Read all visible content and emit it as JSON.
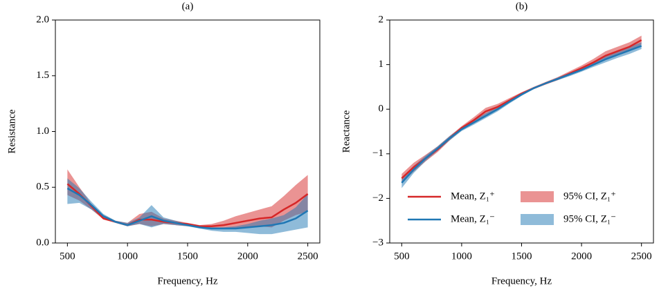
{
  "chart_data": [
    {
      "type": "line",
      "title": "(a)",
      "x_label": "Frequency, Hz",
      "y_label": "Resistance",
      "x": [
        500,
        600,
        700,
        800,
        900,
        1000,
        1100,
        1200,
        1300,
        1400,
        1500,
        1600,
        1700,
        1800,
        1900,
        2000,
        2100,
        2200,
        2300,
        2400,
        2500
      ],
      "xlim": [
        400,
        2600
      ],
      "xticks": [
        500,
        1000,
        1500,
        2000,
        2500
      ],
      "ylim": [
        0,
        2
      ],
      "yticks": [
        {
          "value": 0,
          "label": "0.0"
        },
        {
          "value": 0.5,
          "label": "0.5"
        },
        {
          "value": 1,
          "label": "1.0"
        },
        {
          "value": 1.5,
          "label": "1.5"
        },
        {
          "value": 2,
          "label": "2.0"
        }
      ],
      "series": [
        {
          "color": "#d62728",
          "values": [
            0.53,
            0.44,
            0.33,
            0.22,
            0.19,
            0.16,
            0.21,
            0.21,
            0.19,
            0.18,
            0.17,
            0.15,
            0.15,
            0.16,
            0.18,
            0.2,
            0.22,
            0.23,
            0.3,
            0.36,
            0.44
          ],
          "ci": {
            "color": "#d62728",
            "lower": [
              0.43,
              0.38,
              0.3,
              0.21,
              0.18,
              0.15,
              0.17,
              0.15,
              0.17,
              0.16,
              0.15,
              0.14,
              0.13,
              0.13,
              0.13,
              0.14,
              0.15,
              0.14,
              0.2,
              0.25,
              0.28
            ],
            "upper": [
              0.66,
              0.5,
              0.35,
              0.25,
              0.2,
              0.18,
              0.26,
              0.28,
              0.22,
              0.2,
              0.18,
              0.16,
              0.17,
              0.2,
              0.24,
              0.27,
              0.3,
              0.33,
              0.42,
              0.52,
              0.61
            ]
          }
        },
        {
          "color": "#1f77b4",
          "values": [
            0.49,
            0.43,
            0.34,
            0.24,
            0.19,
            0.16,
            0.2,
            0.24,
            0.2,
            0.18,
            0.16,
            0.14,
            0.13,
            0.13,
            0.13,
            0.14,
            0.15,
            0.16,
            0.18,
            0.22,
            0.29
          ],
          "ci": {
            "color": "#1f77b4",
            "lower": [
              0.35,
              0.36,
              0.3,
              0.22,
              0.18,
              0.15,
              0.17,
              0.14,
              0.17,
              0.16,
              0.15,
              0.13,
              0.11,
              0.1,
              0.1,
              0.09,
              0.08,
              0.08,
              0.1,
              0.12,
              0.14
            ],
            "upper": [
              0.58,
              0.49,
              0.37,
              0.26,
              0.2,
              0.18,
              0.23,
              0.34,
              0.23,
              0.2,
              0.17,
              0.15,
              0.14,
              0.14,
              0.15,
              0.17,
              0.2,
              0.22,
              0.25,
              0.32,
              0.44
            ]
          }
        }
      ]
    },
    {
      "type": "line",
      "title": "(b)",
      "x_label": "Frequency, Hz",
      "y_label": "Reactance",
      "x": [
        500,
        600,
        700,
        800,
        900,
        1000,
        1100,
        1200,
        1300,
        1400,
        1500,
        1600,
        1700,
        1800,
        1900,
        2000,
        2100,
        2200,
        2300,
        2400,
        2500
      ],
      "xlim": [
        400,
        2600
      ],
      "xticks": [
        500,
        1000,
        1500,
        2000,
        2500
      ],
      "ylim": [
        -3,
        2
      ],
      "yticks": [
        {
          "value": -3,
          "label": "−3"
        },
        {
          "value": -2,
          "label": "−2"
        },
        {
          "value": -1,
          "label": "−1"
        },
        0,
        1,
        2
      ],
      "legend": "lower right",
      "series": [
        {
          "name": "Mean, Z₁⁺",
          "color": "#d62728",
          "values": [
            -1.55,
            -1.3,
            -1.1,
            -0.9,
            -0.65,
            -0.42,
            -0.25,
            -0.05,
            0.05,
            0.2,
            0.35,
            0.47,
            0.58,
            0.68,
            0.8,
            0.92,
            1.05,
            1.2,
            1.3,
            1.4,
            1.55
          ],
          "ci": {
            "name": "95% CI, Z₁⁺",
            "color": "#d62728",
            "lower": [
              -1.65,
              -1.4,
              -1.17,
              -0.96,
              -0.7,
              -0.47,
              -0.3,
              -0.12,
              0.0,
              0.15,
              0.32,
              0.45,
              0.55,
              0.65,
              0.76,
              0.87,
              0.98,
              1.1,
              1.2,
              1.3,
              1.45
            ],
            "upper": [
              -1.45,
              -1.2,
              -1.02,
              -0.83,
              -0.6,
              -0.38,
              -0.18,
              0.03,
              0.12,
              0.25,
              0.38,
              0.5,
              0.61,
              0.72,
              0.85,
              0.98,
              1.13,
              1.3,
              1.4,
              1.5,
              1.65
            ]
          }
        },
        {
          "name": "Mean, Z₁⁻",
          "color": "#1f77b4",
          "values": [
            -1.65,
            -1.35,
            -1.1,
            -0.88,
            -0.65,
            -0.45,
            -0.3,
            -0.15,
            0.0,
            0.17,
            0.33,
            0.47,
            0.58,
            0.68,
            0.78,
            0.88,
            1.0,
            1.12,
            1.22,
            1.32,
            1.42
          ],
          "ci": {
            "name": "95% CI, Z₁⁻",
            "color": "#1f77b4",
            "lower": [
              -1.77,
              -1.43,
              -1.16,
              -0.93,
              -0.7,
              -0.49,
              -0.35,
              -0.2,
              -0.05,
              0.13,
              0.3,
              0.45,
              0.56,
              0.65,
              0.74,
              0.84,
              0.95,
              1.05,
              1.15,
              1.24,
              1.35
            ],
            "upper": [
              -1.55,
              -1.27,
              -1.04,
              -0.83,
              -0.6,
              -0.41,
              -0.25,
              -0.09,
              0.05,
              0.21,
              0.36,
              0.49,
              0.6,
              0.71,
              0.82,
              0.93,
              1.06,
              1.2,
              1.3,
              1.4,
              1.5
            ]
          }
        }
      ]
    }
  ]
}
